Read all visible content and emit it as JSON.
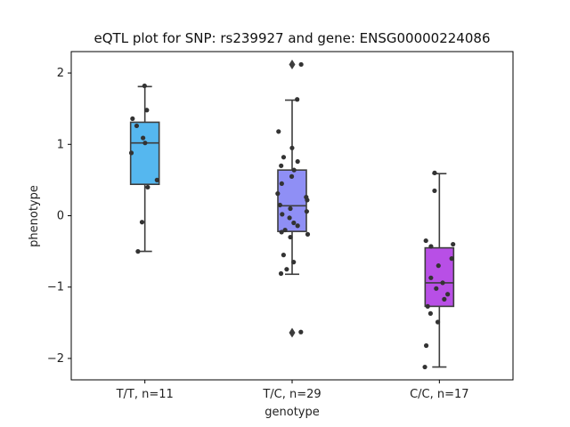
{
  "chart_data": {
    "type": "box",
    "title": "eQTL plot for SNP: rs239927 and gene: ENSG00000224086",
    "xlabel": "genotype",
    "ylabel": "phenotype",
    "ylim": [
      -2.3,
      2.3
    ],
    "yticks": [
      -2,
      -1,
      0,
      1,
      2
    ],
    "grid": false,
    "categories": [
      "T/T, n=11",
      "T/C, n=29",
      "C/C, n=17"
    ],
    "groups": [
      {
        "label": "T/T, n=11",
        "color": "#55b7ef",
        "box": {
          "q1": 0.44,
          "median": 1.02,
          "q3": 1.31,
          "whisker_low": -0.5,
          "whisker_high": 1.81
        },
        "outliers": [],
        "points": [
          1.82,
          1.48,
          1.36,
          1.26,
          1.09,
          1.02,
          0.88,
          0.5,
          0.4,
          -0.09,
          -0.5
        ]
      },
      {
        "label": "T/C, n=29",
        "color": "#8f8ff5",
        "box": {
          "q1": -0.22,
          "median": 0.14,
          "q3": 0.64,
          "whisker_low": -0.82,
          "whisker_high": 1.62
        },
        "outliers": [
          2.12,
          -1.64
        ],
        "points": [
          2.12,
          1.63,
          1.18,
          0.95,
          0.82,
          0.76,
          0.7,
          0.64,
          0.55,
          0.45,
          0.31,
          0.26,
          0.22,
          0.15,
          0.1,
          0.06,
          0.02,
          -0.03,
          -0.1,
          -0.14,
          -0.2,
          -0.23,
          -0.26,
          -0.3,
          -0.55,
          -0.65,
          -0.75,
          -0.81,
          -1.63
        ]
      },
      {
        "label": "C/C, n=17",
        "color": "#b84fe6",
        "box": {
          "q1": -1.27,
          "median": -0.94,
          "q3": -0.45,
          "whisker_low": -2.12,
          "whisker_high": 0.59
        },
        "outliers": [],
        "points": [
          0.6,
          0.35,
          -0.35,
          -0.4,
          -0.43,
          -0.6,
          -0.7,
          -0.87,
          -0.94,
          -1.02,
          -1.1,
          -1.17,
          -1.27,
          -1.37,
          -1.49,
          -1.82,
          -2.12
        ]
      }
    ]
  }
}
